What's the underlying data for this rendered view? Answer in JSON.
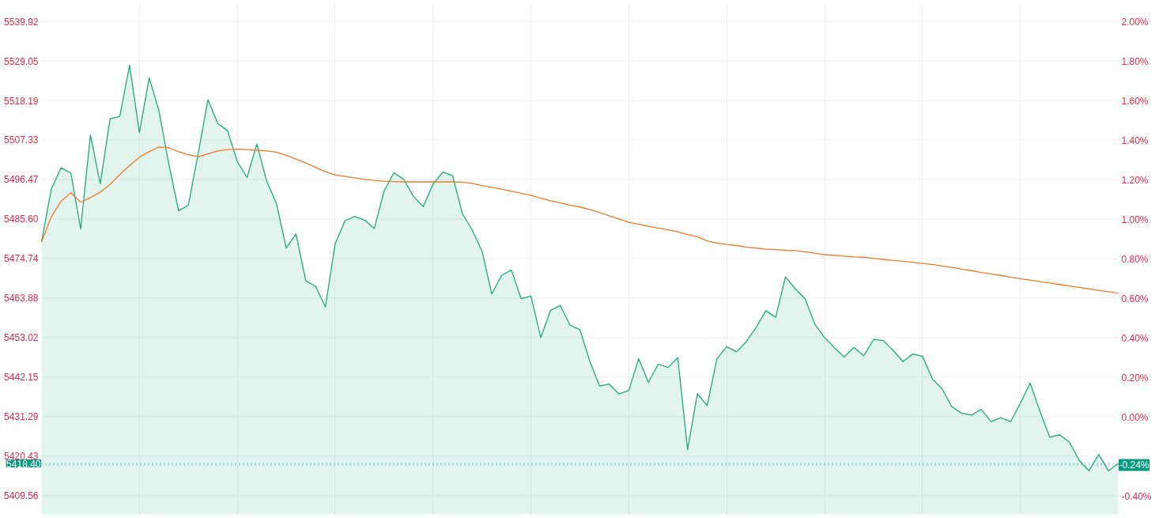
{
  "chart_data": {
    "type": "area",
    "categories": [
      null,
      null,
      null,
      null,
      null,
      null,
      null,
      null,
      null,
      null,
      null,
      null,
      null,
      null,
      null,
      null,
      null,
      null,
      null,
      null,
      null,
      null,
      null,
      null,
      null,
      null,
      null,
      null,
      null,
      null,
      null,
      null,
      null,
      null,
      null,
      null,
      null,
      null,
      null,
      null,
      null,
      null,
      null,
      null,
      null,
      null,
      null,
      null,
      null,
      null,
      null,
      null,
      null,
      null,
      null,
      null,
      null,
      null,
      null,
      null,
      null,
      null,
      null,
      null,
      null,
      null,
      null,
      null,
      null,
      null,
      null,
      null,
      null,
      null,
      null,
      null,
      null,
      null,
      null,
      null,
      null,
      null,
      null,
      null,
      null,
      null,
      null,
      null,
      null,
      null,
      null,
      null,
      null,
      null,
      null,
      null,
      null,
      null,
      null,
      null,
      null,
      null,
      null,
      null,
      null,
      null,
      null,
      null,
      null,
      null,
      null
    ],
    "ylim": [
      5404.4,
      5544.6
    ],
    "yticks": [
      {
        "value": 5409.56,
        "label": "5409.56"
      },
      {
        "value": 5420.43,
        "label": "5420.43"
      },
      {
        "value": 5431.29,
        "label": "5431.29"
      },
      {
        "value": 5442.15,
        "label": "5442.15"
      },
      {
        "value": 5453.02,
        "label": "5453.02"
      },
      {
        "value": 5463.88,
        "label": "5463.88"
      },
      {
        "value": 5474.74,
        "label": "5474.74"
      },
      {
        "value": 5485.6,
        "label": "5485.60"
      },
      {
        "value": 5496.47,
        "label": "5496.47"
      },
      {
        "value": 5507.33,
        "label": "5507.33"
      },
      {
        "value": 5518.19,
        "label": "5518.19"
      },
      {
        "value": 5529.05,
        "label": "5529.05"
      },
      {
        "value": 5539.92,
        "label": "5539.92"
      }
    ],
    "y2lim": [
      -0.49,
      2.09
    ],
    "y2ticks": [
      {
        "value": -0.4,
        "label": "-0.40%"
      },
      {
        "value": -0.2,
        "label": null
      },
      {
        "value": 0,
        "label": "0.00%"
      },
      {
        "value": 0.2,
        "label": "0.20%"
      },
      {
        "value": 0.4,
        "label": "0.40%"
      },
      {
        "value": 0.6,
        "label": "0.60%"
      },
      {
        "value": 0.8,
        "label": "0.80%"
      },
      {
        "value": 1.0,
        "label": "1.00%"
      },
      {
        "value": 1.2,
        "label": "1.20%"
      },
      {
        "value": 1.4,
        "label": "1.40%"
      },
      {
        "value": 1.6,
        "label": "1.60%"
      },
      {
        "value": 1.8,
        "label": "1.80%"
      },
      {
        "value": 2.0,
        "label": "2.00%"
      }
    ],
    "tick_labels": "y",
    "grid": true,
    "ref_lines": [
      {
        "axis": "y",
        "value": 5418.4,
        "label": "5418.40",
        "color": "#089981",
        "line_style": "dotted"
      },
      {
        "axis": "y2",
        "value": -0.24,
        "label": "-0.24%",
        "color": "#089981",
        "line_style": "dotted"
      }
    ],
    "series": [
      {
        "color": "#1fa97a",
        "values": [
          5479.3,
          5493.8,
          5499.7,
          5498.2,
          5482.9,
          5508.7,
          5495.3,
          5513.1,
          5513.8,
          5527.9,
          5509.3,
          5524.4,
          5515.3,
          5500.8,
          5487.9,
          5489.4,
          5503.5,
          5518.4,
          5511.9,
          5509.9,
          5501.4,
          5497.0,
          5506.2,
          5496.0,
          5489.9,
          5477.6,
          5481.5,
          5468.6,
          5467.1,
          5461.4,
          5478.8,
          5485.1,
          5486.3,
          5485.3,
          5483.0,
          5493.3,
          5498.3,
          5496.5,
          5491.8,
          5489.0,
          5495.2,
          5498.5,
          5497.5,
          5487.0,
          5482.6,
          5476.8,
          5465.0,
          5470.1,
          5471.6,
          5463.7,
          5464.4,
          5453.0,
          5460.5,
          5461.8,
          5456.4,
          5455.2,
          5446.6,
          5439.7,
          5440.2,
          5437.5,
          5438.5,
          5447.2,
          5440.7,
          5445.7,
          5444.8,
          5447.5,
          5422.2,
          5437.6,
          5434.3,
          5447.2,
          5450.5,
          5449.1,
          5451.9,
          5455.8,
          5460.4,
          5458.6,
          5469.7,
          5466.4,
          5463.7,
          5456.7,
          5453.0,
          5450.2,
          5447.7,
          5450.3,
          5448.0,
          5452.5,
          5452.2,
          5449.5,
          5446.4,
          5448.5,
          5447.9,
          5441.7,
          5438.9,
          5434.0,
          5432.2,
          5431.7,
          5433.3,
          5429.9,
          5431.0,
          5429.9,
          5435.0,
          5440.5,
          5432.7,
          5425.6,
          5426.3,
          5424.3,
          5419.3,
          5416.4,
          5420.9,
          5416.4,
          5418.4
        ]
      },
      {
        "type": "line",
        "color": "#f07a2a",
        "values": [
          5479.3,
          5486.2,
          5490.5,
          5492.8,
          5490.2,
          5491.5,
          5493.0,
          5495.1,
          5497.8,
          5500.3,
          5502.6,
          5504.1,
          5505.4,
          5505.2,
          5504.1,
          5503.3,
          5502.7,
          5503.5,
          5504.3,
          5504.7,
          5504.8,
          5504.7,
          5504.5,
          5504.3,
          5504.0,
          5503.1,
          5502.1,
          5501.0,
          5499.8,
          5498.6,
          5497.7,
          5497.3,
          5496.9,
          5496.5,
          5496.2,
          5496.0,
          5495.9,
          5495.8,
          5495.8,
          5495.8,
          5495.8,
          5495.8,
          5495.8,
          5495.7,
          5495.4,
          5494.8,
          5494.3,
          5493.8,
          5493.2,
          5492.7,
          5492.1,
          5491.3,
          5490.6,
          5490.0,
          5489.4,
          5488.9,
          5488.2,
          5487.4,
          5486.5,
          5485.6,
          5484.7,
          5484.2,
          5483.6,
          5483.1,
          5482.6,
          5482.1,
          5481.3,
          5480.7,
          5479.6,
          5479.0,
          5478.6,
          5478.3,
          5477.9,
          5477.6,
          5477.3,
          5477.2,
          5477.0,
          5476.9,
          5476.6,
          5476.2,
          5475.8,
          5475.6,
          5475.4,
          5475.2,
          5475.1,
          5474.8,
          5474.5,
          5474.2,
          5474.0,
          5473.7,
          5473.4,
          5473.1,
          5472.7,
          5472.3,
          5471.8,
          5471.4,
          5470.9,
          5470.5,
          5470.1,
          5469.6,
          5469.2,
          5468.8,
          5468.4,
          5468.0,
          5467.6,
          5467.2,
          5466.8,
          5466.4,
          5466.0,
          5465.6,
          5465.2
        ]
      }
    ]
  }
}
